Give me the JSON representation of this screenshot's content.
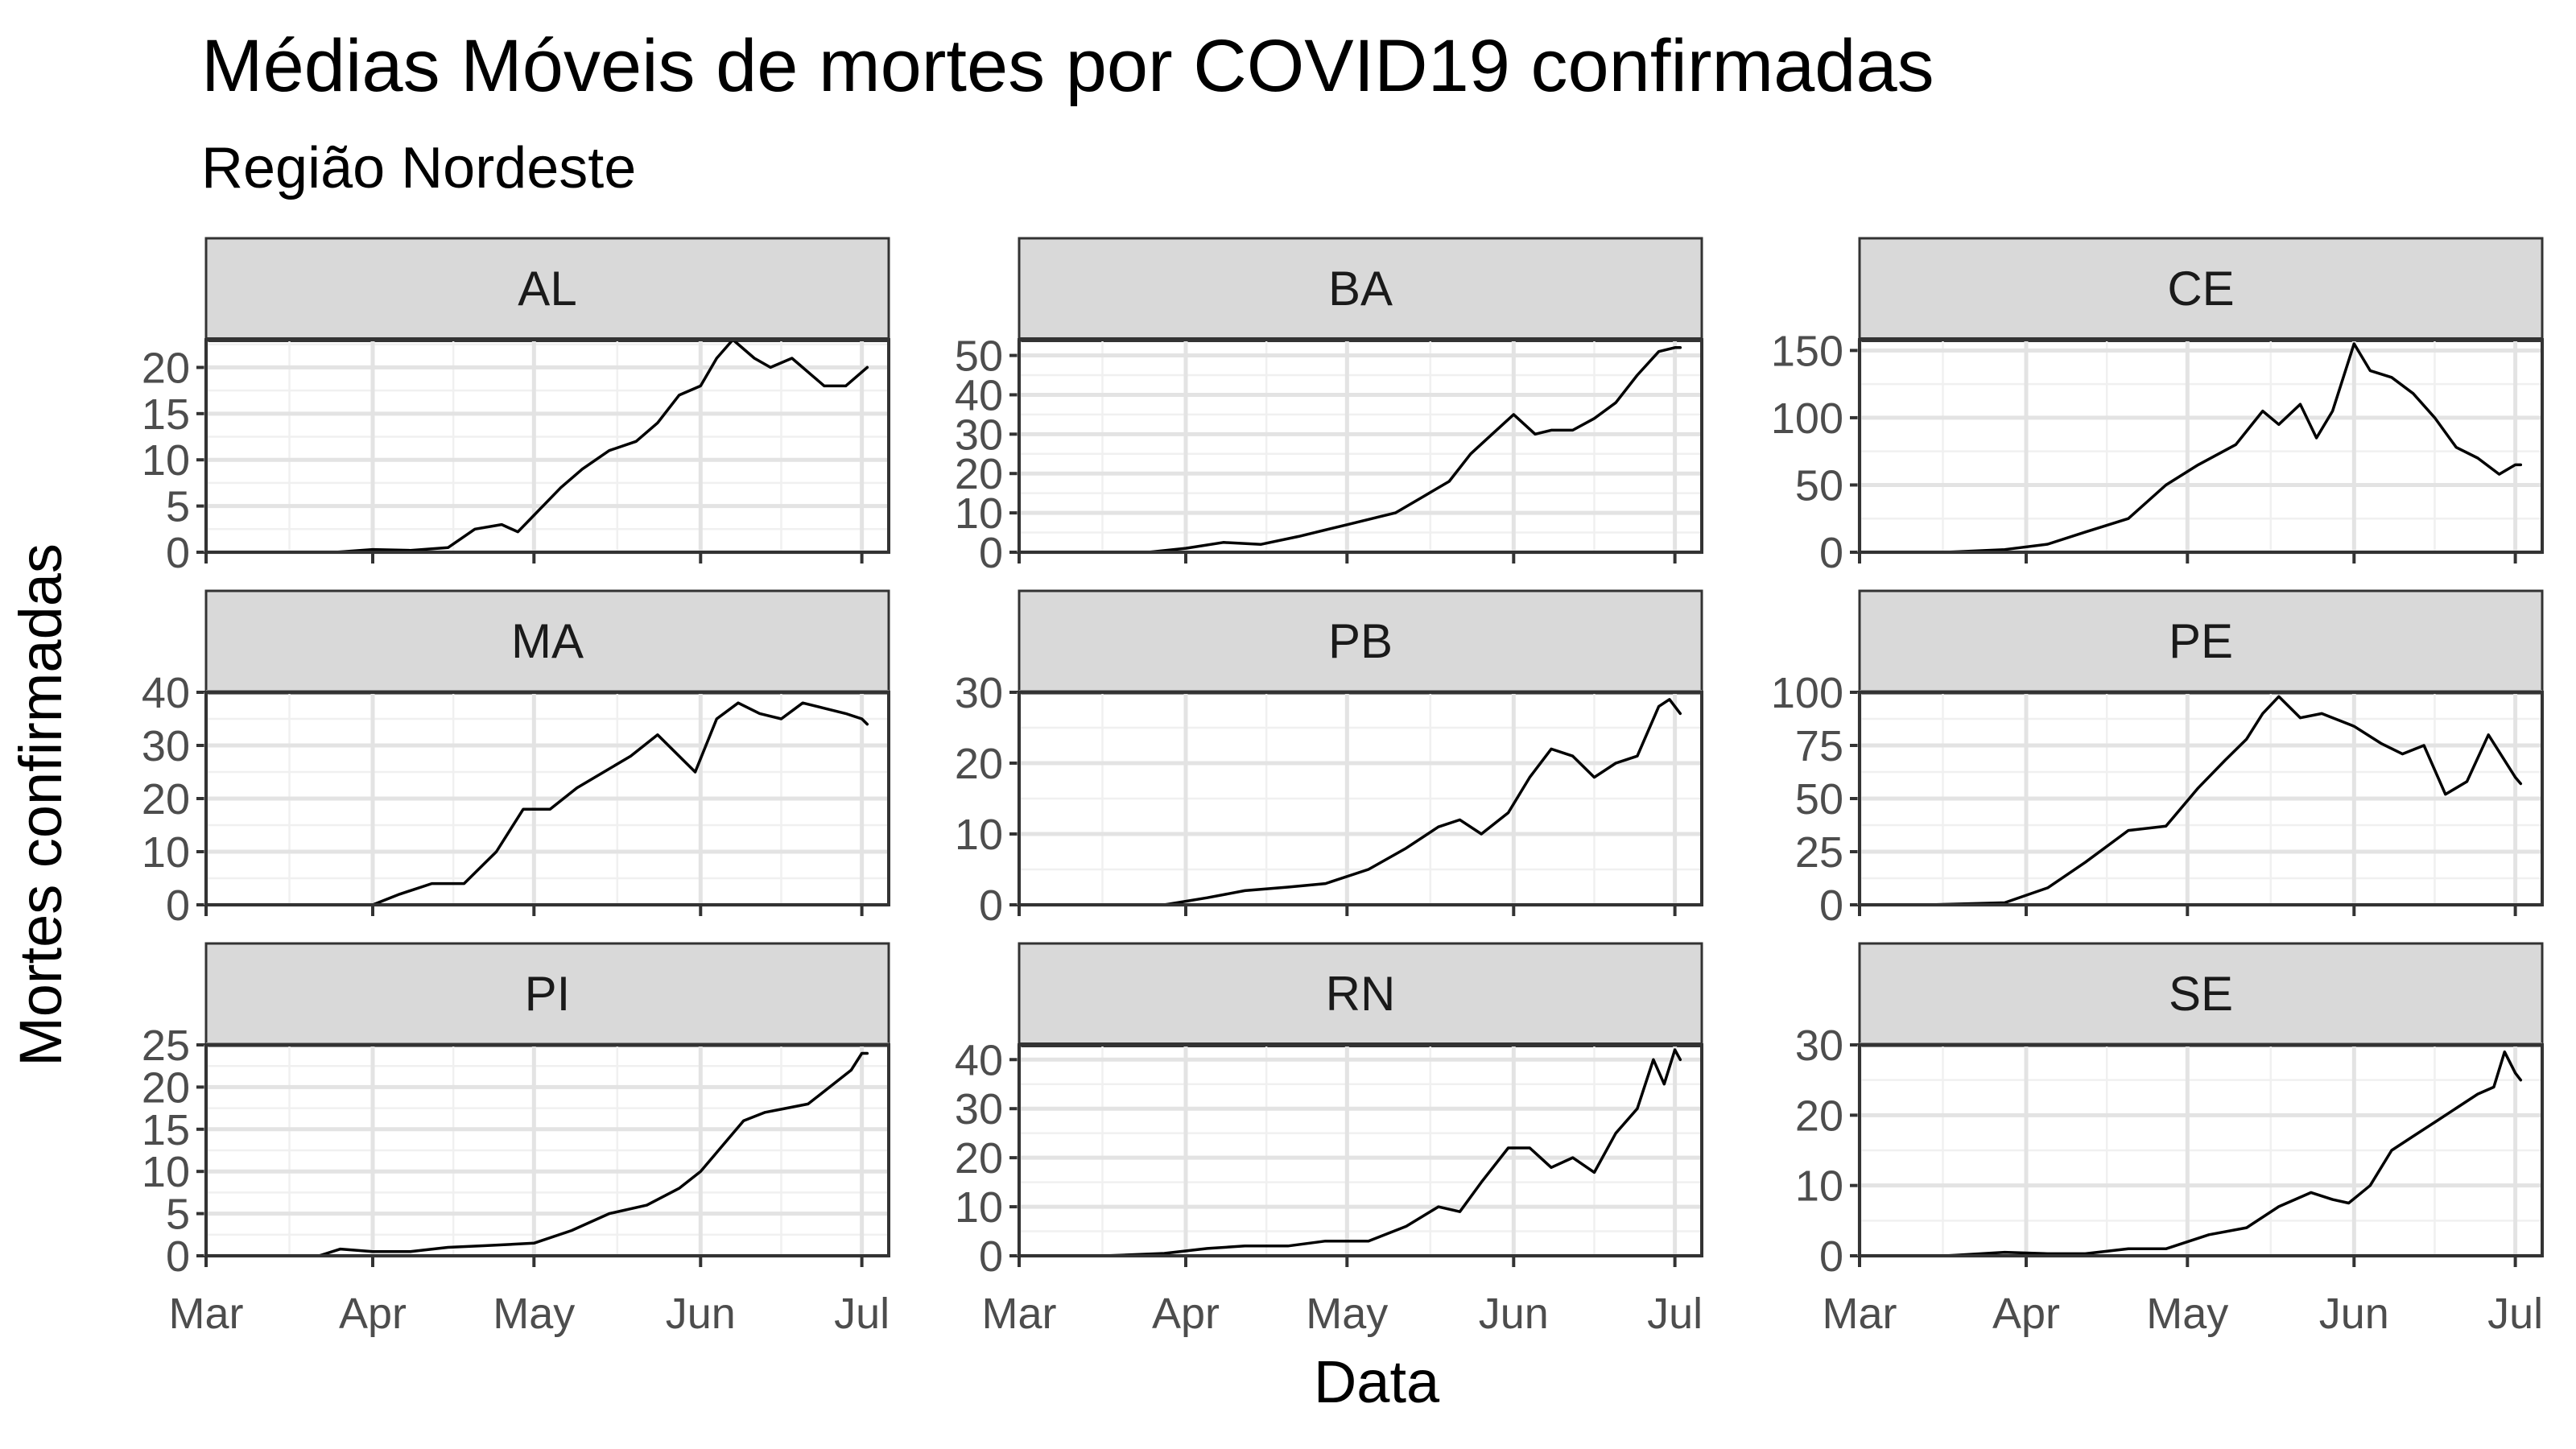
{
  "title": "Médias Móveis de mortes por COVID19 confirmadas",
  "subtitle": "Região Nordeste",
  "chart_data": {
    "type": "line",
    "layout": "facet-grid 3x3, independent y scales",
    "xlabel": "Data",
    "ylabel": "Mortes confirmadas",
    "x_ticks": [
      "Mar",
      "Apr",
      "May",
      "Jun",
      "Jul"
    ],
    "xlim": [
      "2020-03-01",
      "2020-07-06"
    ],
    "grid": true,
    "line_color": "#000000",
    "panels": [
      {
        "name": "AL",
        "ylim": [
          0,
          23
        ],
        "yticks": [
          0,
          5,
          10,
          15,
          20
        ],
        "x": [
          "2020-03-12",
          "2020-03-25",
          "2020-04-01",
          "2020-04-08",
          "2020-04-15",
          "2020-04-20",
          "2020-04-25",
          "2020-04-28",
          "2020-05-01",
          "2020-05-06",
          "2020-05-10",
          "2020-05-15",
          "2020-05-20",
          "2020-05-24",
          "2020-05-28",
          "2020-06-01",
          "2020-06-04",
          "2020-06-07",
          "2020-06-11",
          "2020-06-14",
          "2020-06-18",
          "2020-06-22",
          "2020-06-24",
          "2020-06-28",
          "2020-07-01",
          "2020-07-02"
        ],
        "y": [
          0,
          0,
          0.3,
          0.2,
          0.5,
          2.5,
          3,
          2.2,
          4,
          7,
          9,
          11,
          12,
          14,
          17,
          18,
          21,
          23,
          21,
          20,
          21,
          19,
          18,
          18,
          19.5,
          20
        ]
      },
      {
        "name": "BA",
        "ylim": [
          0,
          54
        ],
        "yticks": [
          0,
          10,
          20,
          30,
          40,
          50
        ],
        "x": [
          "2020-03-12",
          "2020-03-25",
          "2020-04-01",
          "2020-04-08",
          "2020-04-15",
          "2020-04-22",
          "2020-05-01",
          "2020-05-10",
          "2020-05-15",
          "2020-05-20",
          "2020-05-24",
          "2020-05-28",
          "2020-06-01",
          "2020-06-05",
          "2020-06-08",
          "2020-06-12",
          "2020-06-16",
          "2020-06-20",
          "2020-06-24",
          "2020-06-28",
          "2020-07-01",
          "2020-07-02"
        ],
        "y": [
          0,
          0,
          1,
          2.5,
          2,
          4,
          7,
          10,
          14,
          18,
          25,
          30,
          35,
          30,
          31,
          31,
          34,
          38,
          45,
          51,
          52,
          52
        ]
      },
      {
        "name": "CE",
        "ylim": [
          0,
          158
        ],
        "yticks": [
          0,
          50,
          100,
          150
        ],
        "x": [
          "2020-03-17",
          "2020-03-28",
          "2020-04-05",
          "2020-04-12",
          "2020-04-20",
          "2020-04-27",
          "2020-05-03",
          "2020-05-10",
          "2020-05-15",
          "2020-05-18",
          "2020-05-22",
          "2020-05-25",
          "2020-05-28",
          "2020-06-01",
          "2020-06-04",
          "2020-06-08",
          "2020-06-12",
          "2020-06-16",
          "2020-06-20",
          "2020-06-24",
          "2020-06-28",
          "2020-07-01",
          "2020-07-02"
        ],
        "y": [
          0,
          2,
          6,
          15,
          25,
          50,
          65,
          80,
          105,
          95,
          110,
          85,
          105,
          155,
          135,
          130,
          118,
          100,
          78,
          70,
          58,
          65,
          65
        ]
      },
      {
        "name": "MA",
        "ylim": [
          0,
          40
        ],
        "yticks": [
          0,
          10,
          20,
          30,
          40
        ],
        "x": [
          "2020-03-22",
          "2020-04-01",
          "2020-04-06",
          "2020-04-12",
          "2020-04-18",
          "2020-04-24",
          "2020-04-29",
          "2020-05-04",
          "2020-05-09",
          "2020-05-14",
          "2020-05-19",
          "2020-05-24",
          "2020-05-31",
          "2020-06-04",
          "2020-06-08",
          "2020-06-12",
          "2020-06-16",
          "2020-06-20",
          "2020-06-24",
          "2020-06-28",
          "2020-07-01",
          "2020-07-02"
        ],
        "y": [
          0,
          0,
          2,
          4,
          4,
          10,
          18,
          18,
          22,
          25,
          28,
          32,
          25,
          35,
          38,
          36,
          35,
          38,
          37,
          36,
          35,
          34
        ]
      },
      {
        "name": "PB",
        "ylim": [
          0,
          30
        ],
        "yticks": [
          0,
          10,
          20,
          30
        ],
        "x": [
          "2020-03-17",
          "2020-03-28",
          "2020-04-05",
          "2020-04-12",
          "2020-04-20",
          "2020-04-27",
          "2020-05-05",
          "2020-05-12",
          "2020-05-18",
          "2020-05-22",
          "2020-05-26",
          "2020-05-31",
          "2020-06-04",
          "2020-06-08",
          "2020-06-12",
          "2020-06-16",
          "2020-06-20",
          "2020-06-24",
          "2020-06-28",
          "2020-06-30",
          "2020-07-02"
        ],
        "y": [
          0,
          0,
          1,
          2,
          2.5,
          3,
          5,
          8,
          11,
          12,
          10,
          13,
          18,
          22,
          21,
          18,
          20,
          21,
          28,
          29,
          27
        ]
      },
      {
        "name": "PE",
        "ylim": [
          0,
          100
        ],
        "yticks": [
          0,
          25,
          50,
          75,
          100
        ],
        "x": [
          "2020-03-14",
          "2020-03-28",
          "2020-04-05",
          "2020-04-12",
          "2020-04-20",
          "2020-04-27",
          "2020-05-03",
          "2020-05-08",
          "2020-05-12",
          "2020-05-15",
          "2020-05-18",
          "2020-05-22",
          "2020-05-26",
          "2020-06-01",
          "2020-06-06",
          "2020-06-10",
          "2020-06-14",
          "2020-06-18",
          "2020-06-22",
          "2020-06-26",
          "2020-07-01",
          "2020-07-02"
        ],
        "y": [
          0,
          1,
          8,
          20,
          35,
          37,
          55,
          68,
          78,
          90,
          98,
          88,
          90,
          84,
          76,
          71,
          75,
          52,
          58,
          80,
          60,
          57
        ]
      },
      {
        "name": "PI",
        "ylim": [
          0,
          25
        ],
        "yticks": [
          0,
          5,
          10,
          15,
          20,
          25
        ],
        "x": [
          "2020-03-22",
          "2020-03-26",
          "2020-04-01",
          "2020-04-08",
          "2020-04-15",
          "2020-04-22",
          "2020-05-01",
          "2020-05-08",
          "2020-05-15",
          "2020-05-22",
          "2020-05-28",
          "2020-06-01",
          "2020-06-05",
          "2020-06-09",
          "2020-06-13",
          "2020-06-17",
          "2020-06-21",
          "2020-06-25",
          "2020-06-29",
          "2020-07-01",
          "2020-07-02"
        ],
        "y": [
          0,
          0.8,
          0.5,
          0.5,
          1,
          1.2,
          1.5,
          3,
          5,
          6,
          8,
          10,
          13,
          16,
          17,
          17.5,
          18,
          20,
          22,
          24,
          24
        ]
      },
      {
        "name": "RN",
        "ylim": [
          0,
          43
        ],
        "yticks": [
          0,
          10,
          20,
          30,
          40
        ],
        "x": [
          "2020-03-17",
          "2020-03-28",
          "2020-04-05",
          "2020-04-12",
          "2020-04-20",
          "2020-04-27",
          "2020-05-05",
          "2020-05-12",
          "2020-05-18",
          "2020-05-22",
          "2020-05-26",
          "2020-05-31",
          "2020-06-04",
          "2020-06-08",
          "2020-06-12",
          "2020-06-16",
          "2020-06-20",
          "2020-06-24",
          "2020-06-27",
          "2020-06-29",
          "2020-07-01",
          "2020-07-02"
        ],
        "y": [
          0,
          0.5,
          1.5,
          2,
          2,
          3,
          3,
          6,
          10,
          9,
          15,
          22,
          22,
          18,
          20,
          17,
          25,
          30,
          40,
          35,
          42,
          40
        ]
      },
      {
        "name": "SE",
        "ylim": [
          0,
          30
        ],
        "yticks": [
          0,
          10,
          20,
          30
        ],
        "x": [
          "2020-03-17",
          "2020-03-28",
          "2020-04-05",
          "2020-04-12",
          "2020-04-20",
          "2020-04-27",
          "2020-05-05",
          "2020-05-12",
          "2020-05-18",
          "2020-05-24",
          "2020-05-28",
          "2020-05-31",
          "2020-06-04",
          "2020-06-08",
          "2020-06-12",
          "2020-06-16",
          "2020-06-20",
          "2020-06-24",
          "2020-06-27",
          "2020-06-29",
          "2020-07-01",
          "2020-07-02"
        ],
        "y": [
          0,
          0.5,
          0.3,
          0.3,
          1,
          1,
          3,
          4,
          7,
          9,
          8,
          7.5,
          10,
          15,
          17,
          19,
          21,
          23,
          24,
          29,
          26,
          25
        ]
      }
    ]
  }
}
